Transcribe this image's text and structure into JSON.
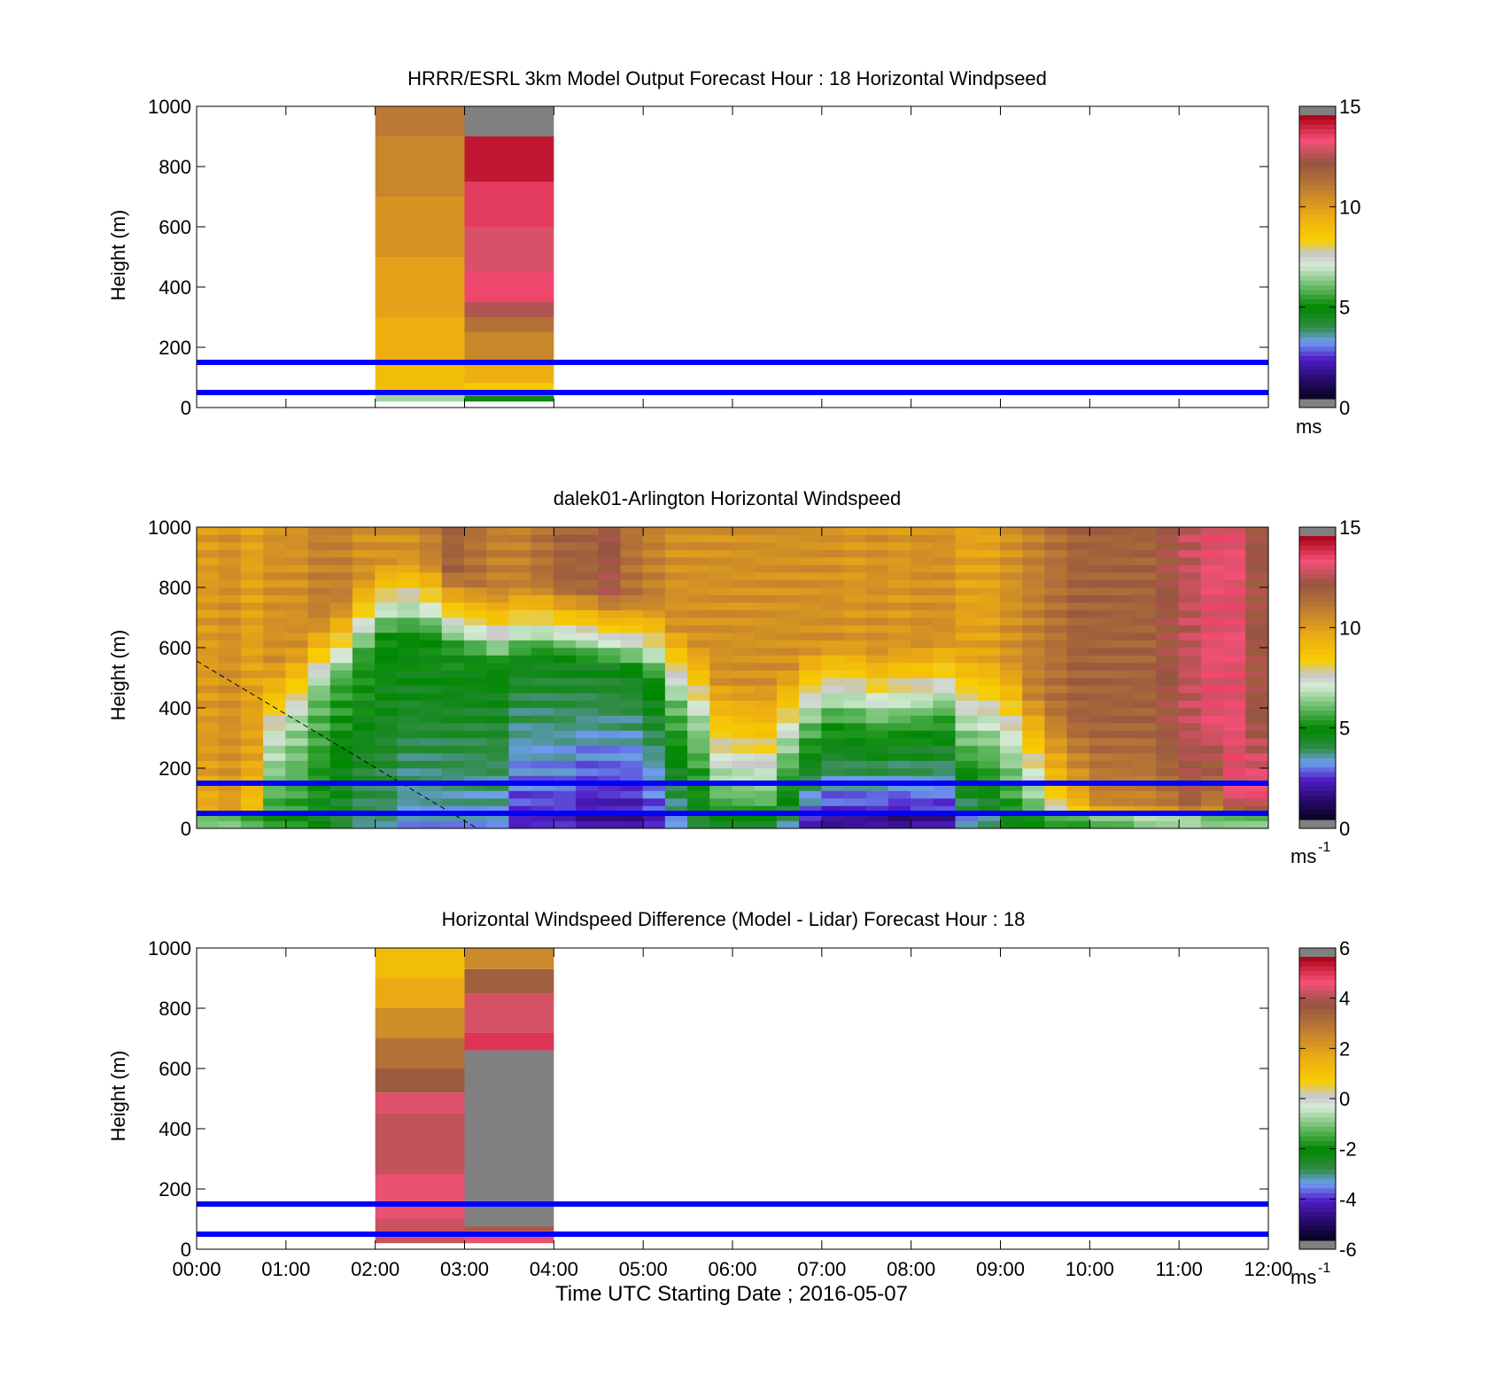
{
  "figure": {
    "xlabel": "Time UTC  Starting Date ; 2016-05-07",
    "xticks": [
      "00:00",
      "01:00",
      "02:00",
      "03:00",
      "04:00",
      "05:00",
      "06:00",
      "07:00",
      "08:00",
      "09:00",
      "10:00",
      "11:00",
      "12:00"
    ]
  },
  "colors": {
    "ref_line": "#0000ff",
    "nan": "#808080"
  },
  "chart_data": [
    {
      "type": "heatmap",
      "title": "HRRR/ESRL 3km Model Output   Forecast Hour : 18 Horizontal Windpseed",
      "ylabel": "Height (m)",
      "xlim": [
        0,
        12
      ],
      "ylim": [
        0,
        1000
      ],
      "yticks": [
        "0",
        "200",
        "400",
        "600",
        "800",
        "1000"
      ],
      "colorbar": {
        "min": 0,
        "max": 15,
        "ticks": [
          "0",
          "5",
          "10",
          "15"
        ],
        "unit": "ms",
        "unit_sup": ""
      },
      "ref_lines_m": [
        50,
        150
      ],
      "columns": [
        {
          "x0": 2,
          "x1": 3,
          "bins": [
            {
              "y0": 20,
              "y1": 40,
              "v": 6.5
            },
            {
              "y0": 40,
              "y1": 60,
              "v": 8
            },
            {
              "y0": 60,
              "y1": 150,
              "v": 9
            },
            {
              "y0": 150,
              "y1": 300,
              "v": 9.5
            },
            {
              "y0": 300,
              "y1": 500,
              "v": 10
            },
            {
              "y0": 500,
              "y1": 700,
              "v": 10.4
            },
            {
              "y0": 700,
              "y1": 900,
              "v": 10.8
            },
            {
              "y0": 900,
              "y1": 1000,
              "v": 11.2
            }
          ]
        },
        {
          "x0": 3,
          "x1": 4,
          "bins": [
            {
              "y0": 20,
              "y1": 40,
              "v": 4.5
            },
            {
              "y0": 40,
              "y1": 80,
              "v": 8.5
            },
            {
              "y0": 80,
              "y1": 150,
              "v": 9.5
            },
            {
              "y0": 150,
              "y1": 250,
              "v": 10.8
            },
            {
              "y0": 250,
              "y1": 300,
              "v": 11.5
            },
            {
              "y0": 300,
              "y1": 350,
              "v": 12.8
            },
            {
              "y0": 350,
              "y1": 450,
              "v": 13.8
            },
            {
              "y0": 450,
              "y1": 600,
              "v": 13.3
            },
            {
              "y0": 600,
              "y1": 750,
              "v": 14
            },
            {
              "y0": 750,
              "y1": 900,
              "v": 14.6
            },
            {
              "y0": 900,
              "y1": 1000,
              "v": null
            }
          ]
        }
      ]
    },
    {
      "type": "heatmap",
      "title": "dalek01-Arlington  Horizontal Windspeed",
      "ylabel": "Height (m)",
      "xlim": [
        0,
        12
      ],
      "ylim": [
        0,
        1000
      ],
      "yticks": [
        "0",
        "200",
        "400",
        "600",
        "800",
        "1000"
      ],
      "colorbar": {
        "min": 0,
        "max": 15,
        "ticks": [
          "0",
          "5",
          "10",
          "15"
        ],
        "unit": "ms",
        "unit_sup": "-1"
      },
      "ref_lines_m": [
        50,
        150
      ],
      "profiles": [
        {
          "t": 0.12,
          "b": 8.5,
          "m": 9.5,
          "tp": 10.2,
          "h": 0,
          "lo": 6
        },
        {
          "t": 0.37,
          "b": 9,
          "m": 10,
          "tp": 10.5,
          "h": 0,
          "lo": 6
        },
        {
          "t": 0.62,
          "b": 7.5,
          "m": 8.5,
          "tp": 10,
          "h": 0,
          "lo": 5.5
        },
        {
          "t": 0.87,
          "b": 5,
          "m": 7,
          "tp": 10.5,
          "h": 300,
          "lo": 5
        },
        {
          "t": 1.12,
          "b": 5,
          "m": 6.5,
          "tp": 10.5,
          "h": 350,
          "lo": 5
        },
        {
          "t": 1.37,
          "b": 4.5,
          "m": 6,
          "tp": 11,
          "h": 450,
          "lo": 4.5
        },
        {
          "t": 1.62,
          "b": 4,
          "m": 5.5,
          "tp": 11,
          "h": 500,
          "lo": 4
        },
        {
          "t": 1.87,
          "b": 3.5,
          "m": 5.3,
          "tp": 10.5,
          "h": 580,
          "lo": 3.5
        },
        {
          "t": 2.12,
          "b": 3.5,
          "m": 5,
          "tp": 10.5,
          "h": 640,
          "lo": 3.5
        },
        {
          "t": 2.37,
          "b": 3,
          "m": 5,
          "tp": 10.5,
          "h": 650,
          "lo": 3
        },
        {
          "t": 2.62,
          "b": 3,
          "m": 5,
          "tp": 11,
          "h": 640,
          "lo": 3
        },
        {
          "t": 2.87,
          "b": 3,
          "m": 5,
          "tp": 12,
          "h": 600,
          "lo": 3
        },
        {
          "t": 3.12,
          "b": 3,
          "m": 4.8,
          "tp": 11.5,
          "h": 570,
          "lo": 3
        },
        {
          "t": 3.37,
          "b": 3,
          "m": 4.8,
          "tp": 11,
          "h": 540,
          "lo": 3
        },
        {
          "t": 3.62,
          "b": 2,
          "m": 4.5,
          "tp": 11,
          "h": 560,
          "lo": 2
        },
        {
          "t": 3.87,
          "b": 2,
          "m": 4.5,
          "tp": 11.5,
          "h": 570,
          "lo": 2
        },
        {
          "t": 4.12,
          "b": 2,
          "m": 4.5,
          "tp": 12,
          "h": 560,
          "lo": 2
        },
        {
          "t": 4.37,
          "b": 1.5,
          "m": 4.5,
          "tp": 12,
          "h": 550,
          "lo": 1.5
        },
        {
          "t": 4.62,
          "b": 1.5,
          "m": 4.5,
          "tp": 12.5,
          "h": 540,
          "lo": 1.5
        },
        {
          "t": 4.87,
          "b": 1.5,
          "m": 4.5,
          "tp": 11.5,
          "h": 520,
          "lo": 1.5
        },
        {
          "t": 5.12,
          "b": 2,
          "m": 5,
          "tp": 11,
          "h": 500,
          "lo": 2
        },
        {
          "t": 5.37,
          "b": 3,
          "m": 6,
          "tp": 10.5,
          "h": 420,
          "lo": 3
        },
        {
          "t": 5.62,
          "b": 4,
          "m": 6.5,
          "tp": 10.5,
          "h": 360,
          "lo": 4
        },
        {
          "t": 5.87,
          "b": 4.5,
          "m": 7.5,
          "tp": 10.5,
          "h": 250,
          "lo": 4.5
        },
        {
          "t": 6.12,
          "b": 4.5,
          "m": 7.5,
          "tp": 10.5,
          "h": 230,
          "lo": 4.5
        },
        {
          "t": 6.37,
          "b": 4.5,
          "m": 7.5,
          "tp": 10.5,
          "h": 220,
          "lo": 4.5
        },
        {
          "t": 6.62,
          "b": 3.5,
          "m": 6.5,
          "tp": 10.5,
          "h": 280,
          "lo": 3.5
        },
        {
          "t": 6.87,
          "b": 2,
          "m": 6,
          "tp": 10.5,
          "h": 350,
          "lo": 2
        },
        {
          "t": 7.12,
          "b": 1.5,
          "m": 5.5,
          "tp": 10.5,
          "h": 370,
          "lo": 1.5
        },
        {
          "t": 7.37,
          "b": 1.5,
          "m": 5.5,
          "tp": 10.3,
          "h": 360,
          "lo": 1.5
        },
        {
          "t": 7.62,
          "b": 1.5,
          "m": 5.5,
          "tp": 10.5,
          "h": 340,
          "lo": 1.5
        },
        {
          "t": 7.87,
          "b": 1.2,
          "m": 5.5,
          "tp": 10.3,
          "h": 350,
          "lo": 1.2
        },
        {
          "t": 8.12,
          "b": 1.5,
          "m": 5.5,
          "tp": 10.5,
          "h": 360,
          "lo": 1.5
        },
        {
          "t": 8.37,
          "b": 1.5,
          "m": 5.5,
          "tp": 10.5,
          "h": 380,
          "lo": 1.5
        },
        {
          "t": 8.62,
          "b": 3,
          "m": 6.5,
          "tp": 10,
          "h": 340,
          "lo": 3
        },
        {
          "t": 8.87,
          "b": 3.5,
          "m": 6.5,
          "tp": 10,
          "h": 320,
          "lo": 3.5
        },
        {
          "t": 9.12,
          "b": 4.5,
          "m": 7,
          "tp": 10.5,
          "h": 300,
          "lo": 4.5
        },
        {
          "t": 9.37,
          "b": 5,
          "m": 7.5,
          "tp": 11,
          "h": 200,
          "lo": 5
        },
        {
          "t": 9.62,
          "b": 6.5,
          "m": 9,
          "tp": 11.5,
          "h": 150,
          "lo": 5.5
        },
        {
          "t": 9.87,
          "b": 7,
          "m": 10,
          "tp": 12,
          "h": 120,
          "lo": 5.5
        },
        {
          "t": 10.12,
          "b": 8.5,
          "m": 11,
          "tp": 12,
          "h": 100,
          "lo": 6
        },
        {
          "t": 10.37,
          "b": 9,
          "m": 11,
          "tp": 12,
          "h": 100,
          "lo": 6
        },
        {
          "t": 10.62,
          "b": 9.5,
          "m": 11,
          "tp": 12,
          "h": 100,
          "lo": 6.5
        },
        {
          "t": 10.87,
          "b": 9,
          "m": 11.5,
          "tp": 12.5,
          "h": 100,
          "lo": 6.5
        },
        {
          "t": 11.12,
          "b": 9.5,
          "m": 12.3,
          "tp": 13,
          "h": 100,
          "lo": 6.5
        },
        {
          "t": 11.37,
          "b": 9,
          "m": 11.5,
          "tp": 13.5,
          "h": 100,
          "lo": 6
        },
        {
          "t": 11.62,
          "b": 9,
          "m": 13.5,
          "tp": 13.5,
          "h": 100,
          "lo": 6
        },
        {
          "t": 11.87,
          "b": 9,
          "m": 13.8,
          "tp": 12.5,
          "h": 100,
          "lo": 6
        }
      ]
    },
    {
      "type": "heatmap",
      "title": "Horizontal Windspeed Difference (Model - Lidar) Forecast Hour : 18",
      "ylabel": "Height (m)",
      "xlim": [
        0,
        12
      ],
      "ylim": [
        0,
        1000
      ],
      "yticks": [
        "0",
        "200",
        "400",
        "600",
        "800",
        "1000"
      ],
      "colorbar": {
        "min": -6,
        "max": 6,
        "ticks": [
          "-6",
          "-4",
          "-2",
          "0",
          "2",
          "4",
          "6"
        ],
        "unit": "ms",
        "unit_sup": "-1"
      },
      "ref_lines_m": [
        50,
        150
      ],
      "columns": [
        {
          "x0": 2,
          "x1": 3,
          "bins": [
            {
              "y0": 20,
              "y1": 100,
              "v": 4.5
            },
            {
              "y0": 100,
              "y1": 250,
              "v": 4.8
            },
            {
              "y0": 250,
              "y1": 450,
              "v": 4.4
            },
            {
              "y0": 450,
              "y1": 520,
              "v": 4.7
            },
            {
              "y0": 520,
              "y1": 600,
              "v": 3.8
            },
            {
              "y0": 600,
              "y1": 700,
              "v": 3.2
            },
            {
              "y0": 700,
              "y1": 800,
              "v": 2.5
            },
            {
              "y0": 800,
              "y1": 900,
              "v": 1.8
            },
            {
              "y0": 900,
              "y1": 1000,
              "v": 1.2
            }
          ]
        },
        {
          "x0": 3,
          "x1": 4,
          "bins": [
            {
              "y0": 20,
              "y1": 60,
              "v": 4.8
            },
            {
              "y0": 60,
              "y1": 75,
              "v": 4.2
            },
            {
              "y0": 75,
              "y1": 660,
              "v": null
            },
            {
              "y0": 660,
              "y1": 720,
              "v": 5.3
            },
            {
              "y0": 720,
              "y1": 850,
              "v": 4.6
            },
            {
              "y0": 850,
              "y1": 930,
              "v": 3.7
            },
            {
              "y0": 930,
              "y1": 1000,
              "v": 2.6
            }
          ]
        }
      ]
    }
  ]
}
